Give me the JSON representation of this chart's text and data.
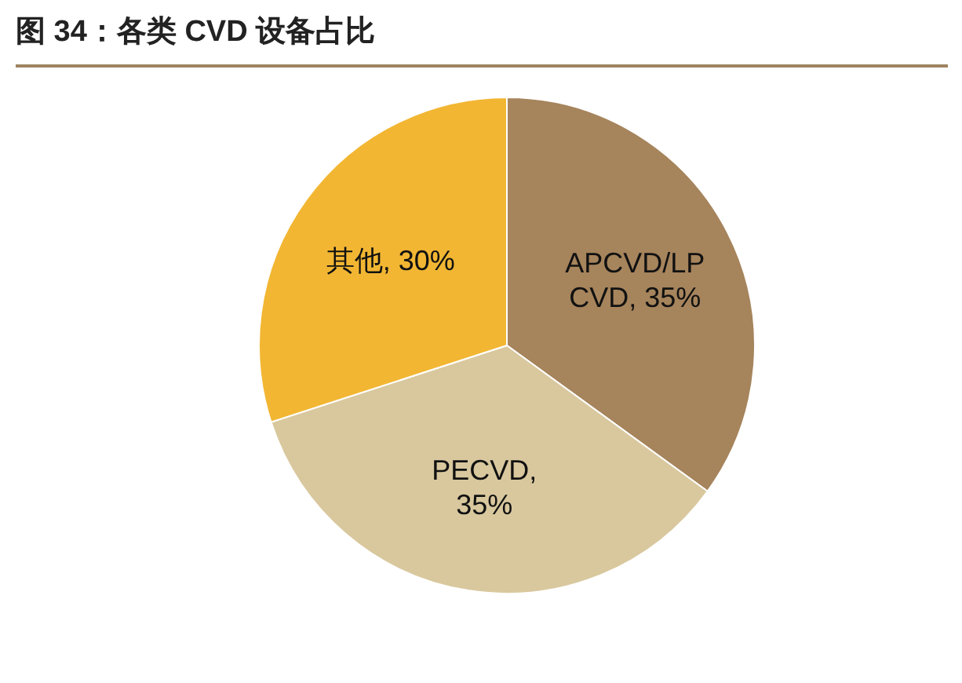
{
  "chart_data": {
    "type": "pie",
    "title": "图 34：各类 CVD 设备占比",
    "categories": [
      "APCVD/LP CVD, 35%",
      "PECVD, 35%",
      "其他, 30%"
    ],
    "values": [
      35,
      35,
      30
    ],
    "colors": [
      "#a6845c",
      "#d9c89e",
      "#f2b633"
    ]
  }
}
